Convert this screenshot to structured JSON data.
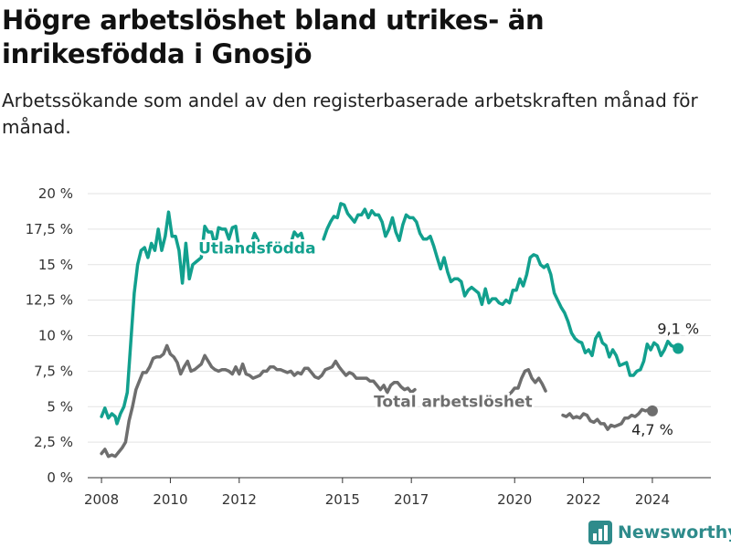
{
  "title": "Högre arbetslöshet bland utrikes- än inrikesfödda i Gnosjö",
  "subtitle": "Arbetssökande som andel av den registerbaserade arbetskraften månad för månad.",
  "brand": {
    "name": "Newsworthy",
    "color": "#2e8b8b"
  },
  "chart_data": {
    "type": "line",
    "title": "Högre arbetslöshet bland utrikes- än inrikesfödda i Gnosjö",
    "xlabel": "",
    "ylabel": "",
    "xlim": [
      2007.6,
      2025.7
    ],
    "ylim": [
      0,
      20
    ],
    "x_ticks": [
      2008,
      2010,
      2012,
      2015,
      2017,
      2020,
      2022,
      2024
    ],
    "x_tick_labels": [
      "2008",
      "2010",
      "2012",
      "2015",
      "2017",
      "2020",
      "2022",
      "2024"
    ],
    "y_ticks": [
      0,
      2.5,
      5,
      7.5,
      10,
      12.5,
      15,
      17.5,
      20
    ],
    "y_tick_labels": [
      "0 %",
      "2,5 %",
      "5 %",
      "7,5 %",
      "10 %",
      "12,5 %",
      "15 %",
      "17,5 %",
      "20 %"
    ],
    "grid": {
      "horizontal": true,
      "vertical": false
    },
    "series": [
      {
        "name": "Utlandsfödda",
        "color": "#12a08e",
        "end_label": "9,1 %",
        "points": [
          [
            2008.0,
            4.3
          ],
          [
            2008.1,
            4.9
          ],
          [
            2008.2,
            4.2
          ],
          [
            2008.3,
            4.5
          ],
          [
            2008.4,
            4.3
          ],
          [
            2008.45,
            3.8
          ],
          [
            2008.55,
            4.5
          ],
          [
            2008.65,
            5.0
          ],
          [
            2008.75,
            6.0
          ],
          [
            2008.85,
            9.5
          ],
          [
            2008.95,
            13.0
          ],
          [
            2009.05,
            15.0
          ],
          [
            2009.15,
            16.0
          ],
          [
            2009.25,
            16.2
          ],
          [
            2009.35,
            15.5
          ],
          [
            2009.45,
            16.5
          ],
          [
            2009.55,
            16.0
          ],
          [
            2009.65,
            17.5
          ],
          [
            2009.75,
            16.0
          ],
          [
            2009.85,
            17.0
          ],
          [
            2009.95,
            18.7
          ],
          [
            2010.05,
            17.0
          ],
          [
            2010.15,
            17.0
          ],
          [
            2010.25,
            16.0
          ],
          [
            2010.35,
            13.7
          ],
          [
            2010.45,
            16.5
          ],
          [
            2010.55,
            14.0
          ],
          [
            2010.65,
            15.0
          ],
          [
            2010.75,
            15.2
          ],
          [
            2010.9,
            15.5
          ],
          [
            2011.0,
            17.7
          ],
          [
            2011.1,
            17.3
          ],
          [
            2011.2,
            17.3
          ],
          [
            2011.3,
            16.3
          ],
          [
            2011.4,
            17.6
          ],
          [
            2011.5,
            17.5
          ],
          [
            2011.6,
            17.5
          ],
          [
            2011.7,
            16.8
          ],
          [
            2011.8,
            17.6
          ],
          [
            2011.9,
            17.7
          ],
          [
            2012.0,
            16.0
          ],
          null,
          [
            2012.35,
            16.5
          ],
          [
            2012.45,
            17.2
          ],
          [
            2012.55,
            16.7
          ],
          null,
          [
            2013.5,
            16.5
          ],
          [
            2013.6,
            17.3
          ],
          [
            2013.7,
            17.0
          ],
          [
            2013.8,
            17.2
          ],
          [
            2013.9,
            16.3
          ],
          null,
          [
            2014.45,
            16.8
          ],
          [
            2014.55,
            17.5
          ],
          [
            2014.65,
            18.0
          ],
          [
            2014.75,
            18.4
          ],
          [
            2014.85,
            18.3
          ],
          [
            2014.95,
            19.3
          ],
          [
            2015.05,
            19.2
          ],
          [
            2015.15,
            18.6
          ],
          [
            2015.25,
            18.3
          ],
          [
            2015.35,
            18.0
          ],
          [
            2015.45,
            18.5
          ],
          [
            2015.55,
            18.5
          ],
          [
            2015.65,
            18.9
          ],
          [
            2015.75,
            18.3
          ],
          [
            2015.85,
            18.8
          ],
          [
            2015.95,
            18.5
          ],
          [
            2016.05,
            18.5
          ],
          [
            2016.15,
            18.0
          ],
          [
            2016.25,
            17.0
          ],
          [
            2016.35,
            17.5
          ],
          [
            2016.45,
            18.3
          ],
          [
            2016.55,
            17.3
          ],
          [
            2016.65,
            16.7
          ],
          [
            2016.75,
            17.8
          ],
          [
            2016.85,
            18.5
          ],
          [
            2016.95,
            18.3
          ],
          [
            2017.05,
            18.3
          ],
          [
            2017.15,
            18.0
          ],
          [
            2017.25,
            17.2
          ],
          [
            2017.35,
            16.8
          ],
          [
            2017.45,
            16.8
          ],
          [
            2017.55,
            17.0
          ],
          [
            2017.65,
            16.3
          ],
          [
            2017.75,
            15.5
          ],
          [
            2017.85,
            14.7
          ],
          [
            2017.95,
            15.5
          ],
          [
            2018.05,
            14.5
          ],
          [
            2018.15,
            13.8
          ],
          [
            2018.25,
            14.0
          ],
          [
            2018.35,
            14.0
          ],
          [
            2018.45,
            13.8
          ],
          [
            2018.55,
            12.8
          ],
          [
            2018.65,
            13.2
          ],
          [
            2018.75,
            13.4
          ],
          [
            2018.85,
            13.2
          ],
          [
            2018.95,
            13.0
          ],
          [
            2019.05,
            12.2
          ],
          [
            2019.15,
            13.3
          ],
          [
            2019.25,
            12.3
          ],
          [
            2019.35,
            12.6
          ],
          [
            2019.45,
            12.6
          ],
          [
            2019.55,
            12.3
          ],
          [
            2019.65,
            12.2
          ],
          [
            2019.75,
            12.5
          ],
          [
            2019.85,
            12.3
          ],
          [
            2019.95,
            13.2
          ],
          [
            2020.05,
            13.2
          ],
          [
            2020.15,
            14.0
          ],
          [
            2020.25,
            13.5
          ],
          [
            2020.35,
            14.3
          ],
          [
            2020.45,
            15.5
          ],
          [
            2020.55,
            15.7
          ],
          [
            2020.65,
            15.6
          ],
          [
            2020.75,
            15.0
          ],
          [
            2020.85,
            14.8
          ],
          [
            2020.95,
            15.0
          ],
          [
            2021.05,
            14.3
          ],
          [
            2021.15,
            13.0
          ],
          [
            2021.25,
            12.5
          ],
          [
            2021.35,
            12.0
          ],
          [
            2021.45,
            11.6
          ],
          [
            2021.55,
            11.0
          ],
          [
            2021.65,
            10.2
          ],
          [
            2021.75,
            9.8
          ],
          [
            2021.85,
            9.6
          ],
          [
            2021.95,
            9.5
          ],
          [
            2022.05,
            8.8
          ],
          [
            2022.15,
            9.0
          ],
          [
            2022.25,
            8.6
          ],
          [
            2022.35,
            9.8
          ],
          [
            2022.45,
            10.2
          ],
          [
            2022.55,
            9.5
          ],
          [
            2022.65,
            9.3
          ],
          [
            2022.75,
            8.5
          ],
          [
            2022.85,
            9.0
          ],
          [
            2022.95,
            8.6
          ],
          [
            2023.05,
            7.9
          ],
          [
            2023.15,
            8.0
          ],
          [
            2023.25,
            8.1
          ],
          [
            2023.35,
            7.2
          ],
          [
            2023.45,
            7.2
          ],
          [
            2023.55,
            7.5
          ],
          [
            2023.65,
            7.6
          ],
          [
            2023.75,
            8.2
          ],
          [
            2023.85,
            9.4
          ],
          [
            2023.95,
            9.0
          ],
          [
            2024.05,
            9.5
          ],
          [
            2024.15,
            9.3
          ],
          [
            2024.25,
            8.6
          ],
          [
            2024.35,
            9.0
          ],
          [
            2024.45,
            9.6
          ],
          [
            2024.55,
            9.3
          ],
          [
            2024.65,
            9.2
          ],
          [
            2024.75,
            9.1
          ]
        ]
      },
      {
        "name": "Total arbetslöshet",
        "color": "#6e6e6e",
        "end_label": "4,7 %",
        "points": [
          [
            2008.0,
            1.7
          ],
          [
            2008.1,
            2.0
          ],
          [
            2008.2,
            1.5
          ],
          [
            2008.3,
            1.6
          ],
          [
            2008.4,
            1.5
          ],
          [
            2008.5,
            1.8
          ],
          [
            2008.6,
            2.1
          ],
          [
            2008.7,
            2.5
          ],
          [
            2008.8,
            4.0
          ],
          [
            2008.9,
            5.0
          ],
          [
            2009.0,
            6.2
          ],
          [
            2009.1,
            6.8
          ],
          [
            2009.2,
            7.4
          ],
          [
            2009.3,
            7.4
          ],
          [
            2009.4,
            7.8
          ],
          [
            2009.5,
            8.4
          ],
          [
            2009.6,
            8.5
          ],
          [
            2009.7,
            8.5
          ],
          [
            2009.8,
            8.7
          ],
          [
            2009.9,
            9.3
          ],
          [
            2010.0,
            8.7
          ],
          [
            2010.1,
            8.5
          ],
          [
            2010.2,
            8.1
          ],
          [
            2010.3,
            7.3
          ],
          [
            2010.4,
            7.8
          ],
          [
            2010.5,
            8.2
          ],
          [
            2010.6,
            7.5
          ],
          [
            2010.7,
            7.6
          ],
          [
            2010.8,
            7.8
          ],
          [
            2010.9,
            8.0
          ],
          [
            2011.0,
            8.6
          ],
          [
            2011.1,
            8.2
          ],
          [
            2011.2,
            7.8
          ],
          [
            2011.3,
            7.6
          ],
          [
            2011.4,
            7.5
          ],
          [
            2011.5,
            7.6
          ],
          [
            2011.6,
            7.6
          ],
          [
            2011.7,
            7.5
          ],
          [
            2011.8,
            7.3
          ],
          [
            2011.9,
            7.8
          ],
          [
            2012.0,
            7.3
          ],
          [
            2012.1,
            8.0
          ],
          [
            2012.2,
            7.3
          ],
          [
            2012.3,
            7.2
          ],
          [
            2012.4,
            7.0
          ],
          [
            2012.5,
            7.1
          ],
          [
            2012.6,
            7.2
          ],
          [
            2012.7,
            7.5
          ],
          [
            2012.8,
            7.5
          ],
          [
            2012.9,
            7.8
          ],
          [
            2013.0,
            7.8
          ],
          [
            2013.1,
            7.6
          ],
          [
            2013.2,
            7.6
          ],
          [
            2013.3,
            7.5
          ],
          [
            2013.4,
            7.4
          ],
          [
            2013.5,
            7.5
          ],
          [
            2013.6,
            7.2
          ],
          [
            2013.7,
            7.4
          ],
          [
            2013.8,
            7.3
          ],
          [
            2013.9,
            7.7
          ],
          [
            2014.0,
            7.7
          ],
          [
            2014.1,
            7.4
          ],
          [
            2014.2,
            7.1
          ],
          [
            2014.3,
            7.0
          ],
          [
            2014.4,
            7.2
          ],
          [
            2014.5,
            7.6
          ],
          [
            2014.6,
            7.7
          ],
          [
            2014.7,
            7.8
          ],
          [
            2014.8,
            8.2
          ],
          [
            2014.9,
            7.8
          ],
          [
            2015.0,
            7.5
          ],
          [
            2015.1,
            7.2
          ],
          [
            2015.2,
            7.4
          ],
          [
            2015.3,
            7.3
          ],
          [
            2015.4,
            7.0
          ],
          [
            2015.5,
            7.0
          ],
          [
            2015.6,
            7.0
          ],
          [
            2015.7,
            7.0
          ],
          [
            2015.8,
            6.8
          ],
          [
            2015.9,
            6.8
          ],
          [
            2016.0,
            6.5
          ],
          [
            2016.1,
            6.2
          ],
          [
            2016.2,
            6.5
          ],
          [
            2016.3,
            6.0
          ],
          [
            2016.4,
            6.5
          ],
          [
            2016.5,
            6.7
          ],
          [
            2016.6,
            6.7
          ],
          [
            2016.7,
            6.4
          ],
          [
            2016.8,
            6.2
          ],
          [
            2016.9,
            6.3
          ],
          [
            2017.0,
            6.0
          ],
          [
            2017.1,
            6.2
          ],
          null,
          [
            2019.8,
            5.8
          ],
          [
            2019.9,
            6.0
          ],
          [
            2020.0,
            6.3
          ],
          [
            2020.1,
            6.3
          ],
          [
            2020.2,
            7.0
          ],
          [
            2020.3,
            7.5
          ],
          [
            2020.4,
            7.6
          ],
          [
            2020.5,
            7.0
          ],
          [
            2020.6,
            6.7
          ],
          [
            2020.7,
            7.0
          ],
          [
            2020.8,
            6.6
          ],
          [
            2020.9,
            6.1
          ],
          null,
          [
            2021.4,
            4.4
          ],
          [
            2021.5,
            4.3
          ],
          [
            2021.6,
            4.5
          ],
          [
            2021.7,
            4.2
          ],
          [
            2021.8,
            4.3
          ],
          [
            2021.9,
            4.2
          ],
          [
            2022.0,
            4.5
          ],
          [
            2022.1,
            4.4
          ],
          [
            2022.2,
            4.0
          ],
          [
            2022.3,
            3.9
          ],
          [
            2022.4,
            4.1
          ],
          [
            2022.5,
            3.8
          ],
          [
            2022.6,
            3.8
          ],
          [
            2022.7,
            3.4
          ],
          [
            2022.8,
            3.7
          ],
          [
            2022.9,
            3.6
          ],
          [
            2023.0,
            3.7
          ],
          [
            2023.1,
            3.8
          ],
          [
            2023.2,
            4.2
          ],
          [
            2023.3,
            4.2
          ],
          [
            2023.4,
            4.4
          ],
          [
            2023.5,
            4.3
          ],
          [
            2023.6,
            4.5
          ],
          [
            2023.7,
            4.8
          ],
          [
            2023.8,
            4.7
          ],
          [
            2023.9,
            4.8
          ],
          [
            2024.0,
            4.7
          ]
        ]
      }
    ]
  }
}
